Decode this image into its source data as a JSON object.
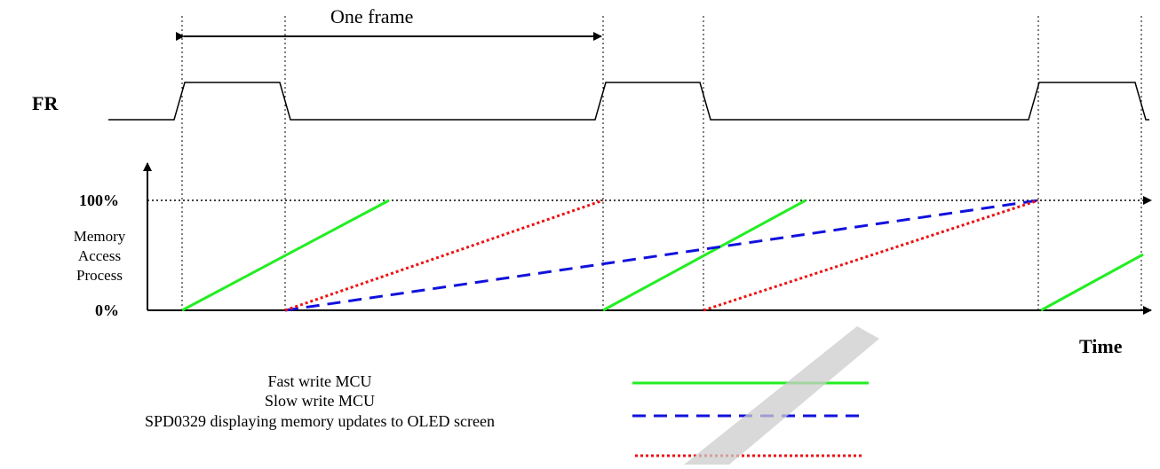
{
  "diagram": {
    "signal_label": "FR",
    "frame_label": "One frame",
    "y_axis": {
      "title_lines": [
        "Memory",
        "Access",
        "Process"
      ],
      "top_tick": "100%",
      "bottom_tick": "0%"
    },
    "x_axis": {
      "title": "Time"
    },
    "legend": [
      {
        "label": "Fast write MCU",
        "color": "#22ee22",
        "style": "solid"
      },
      {
        "label": "Slow write MCU",
        "color": "#1111dd",
        "style": "dashed"
      },
      {
        "label": "SPD0329 displaying memory updates to OLED screen",
        "color": "#ee1111",
        "style": "dotted"
      }
    ]
  }
}
